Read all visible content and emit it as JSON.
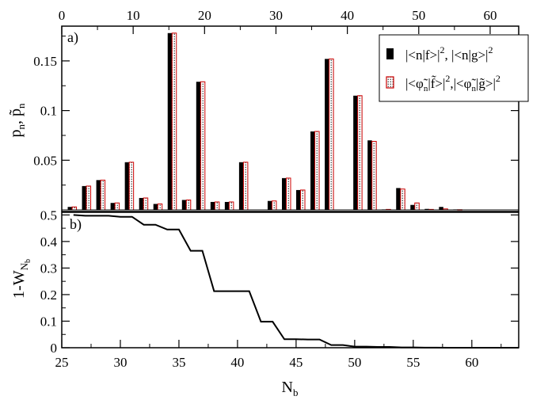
{
  "chart_data": [
    {
      "type": "bar",
      "panel_label": "a)",
      "ylabel": "p_n, p̃_n",
      "ylabel_parts": {
        "main_a": "p",
        "sub_a": "n",
        "sep": ", ",
        "main_b": "p̃",
        "sub_b": "n"
      },
      "xlim": [
        0,
        64
      ],
      "ylim": [
        0,
        0.185
      ],
      "x_ticks": [
        0,
        10,
        20,
        30,
        40,
        50,
        60
      ],
      "x_tick_labels": [
        "0",
        "10",
        "20",
        "30",
        "40",
        "50",
        "60"
      ],
      "y_ticks": [
        0.05,
        0.1,
        0.15
      ],
      "y_tick_labels": [
        "0.05",
        "0.1",
        "0.15"
      ],
      "x_axis_position": "top",
      "legend_position": "top-right",
      "legend": [
        {
          "name": "|<n|f>|^2, |<n|g>|^2",
          "style": "solid",
          "color": "#000000",
          "label_parts": [
            "|<n|f>|",
            "2",
            ", |<n|g>|",
            "2"
          ]
        },
        {
          "name": "|<φ̃n|f̃>|^2,|<φ̃n|g̃>|^2",
          "style": "dotted",
          "color": "#cc0000",
          "label_parts": [
            "|<",
            "φ̃",
            "n",
            "|",
            "f̃",
            ">|",
            "2",
            ",|<",
            "φ̃",
            "n",
            "|",
            "g̃",
            ">|",
            "2"
          ]
        }
      ],
      "series": [
        {
          "name": "|<n|f>|^2, |<n|g>|^2",
          "x": [
            1.5,
            3.5,
            5.5,
            7.5,
            9.5,
            11.5,
            13.5,
            15.5,
            17.5,
            19.5,
            21.5,
            23.5,
            25.5,
            27.5,
            29.5,
            31.5,
            33.5,
            35.5,
            37.5,
            39.5,
            41.5,
            43.5,
            45.5,
            47.5,
            49.5,
            51.5,
            53.5,
            55.5,
            57.5,
            59.5
          ],
          "values": [
            0.003,
            0.024,
            0.03,
            0.007,
            0.048,
            0.012,
            0.006,
            0.178,
            0.01,
            0.129,
            0.008,
            0.008,
            0.048,
            0.0,
            0.009,
            0.032,
            0.02,
            0.079,
            0.152,
            0.0,
            0.115,
            0.07,
            0.0005,
            0.022,
            0.005,
            0.001,
            0.003,
            0.0005,
            0.0,
            0.0
          ]
        },
        {
          "name": "|<φ̃n|f̃>|^2,|<φ̃n|g̃>|^2",
          "x": [
            1.5,
            3.5,
            5.5,
            7.5,
            9.5,
            11.5,
            13.5,
            15.5,
            17.5,
            19.5,
            21.5,
            23.5,
            25.5,
            27.5,
            29.5,
            31.5,
            33.5,
            35.5,
            37.5,
            39.5,
            41.5,
            43.5,
            45.5,
            47.5,
            49.5,
            51.5,
            53.5,
            55.5,
            57.5,
            59.5
          ],
          "values": [
            0.003,
            0.024,
            0.03,
            0.007,
            0.048,
            0.012,
            0.006,
            0.178,
            0.01,
            0.129,
            0.008,
            0.008,
            0.048,
            0.0,
            0.009,
            0.032,
            0.02,
            0.079,
            0.152,
            0.0,
            0.115,
            0.069,
            0.0005,
            0.021,
            0.007,
            0.0005,
            0.001,
            0.0002,
            0.0,
            0.0
          ]
        }
      ]
    },
    {
      "type": "line",
      "panel_label": "b)",
      "ylabel": "1-W_Nb",
      "ylabel_parts": {
        "main": "1-W",
        "sub": "N",
        "subsub": "b"
      },
      "xlabel": "N_b",
      "xlabel_parts": {
        "main": "N",
        "sub": "b"
      },
      "xlim": [
        25,
        64
      ],
      "ylim": [
        0,
        0.51
      ],
      "x_ticks": [
        25,
        30,
        35,
        40,
        45,
        50,
        55,
        60
      ],
      "x_tick_labels": [
        "25",
        "30",
        "35",
        "40",
        "45",
        "50",
        "55",
        "60"
      ],
      "y_ticks": [
        0,
        0.1,
        0.2,
        0.3,
        0.4,
        0.5
      ],
      "y_tick_labels": [
        "0",
        "0.1",
        "0.2",
        "0.3",
        "0.4",
        "0.5"
      ],
      "series": [
        {
          "name": "",
          "x": [
            26,
            27,
            28,
            29,
            30,
            31,
            32,
            33,
            34,
            35,
            36,
            37,
            38,
            39,
            40,
            41,
            42,
            43,
            44,
            45,
            46,
            47,
            48,
            49,
            50,
            51,
            52,
            53,
            54,
            55,
            56,
            57,
            58,
            59,
            60,
            61,
            62,
            63,
            64
          ],
          "values": [
            0.5,
            0.497,
            0.497,
            0.497,
            0.493,
            0.493,
            0.463,
            0.463,
            0.445,
            0.445,
            0.365,
            0.365,
            0.213,
            0.213,
            0.213,
            0.213,
            0.098,
            0.098,
            0.032,
            0.032,
            0.031,
            0.031,
            0.01,
            0.01,
            0.004,
            0.004,
            0.003,
            0.003,
            0.001,
            0.001,
            0.0005,
            0.0005,
            0.0,
            0.0,
            0.0,
            0.0,
            0.0,
            0.0,
            0.0
          ]
        }
      ]
    }
  ]
}
